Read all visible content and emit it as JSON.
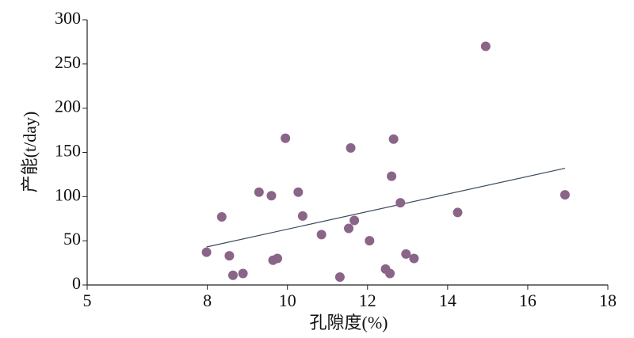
{
  "chart_data": {
    "type": "scatter",
    "xlabel": "孔隙度(%)",
    "ylabel": "产能(t/day)",
    "xlim": [
      5,
      18
    ],
    "xticks": [
      5,
      8,
      10,
      12,
      14,
      16,
      18
    ],
    "ylim": [
      0,
      300
    ],
    "yticks": [
      0,
      50,
      100,
      150,
      200,
      250,
      300
    ],
    "grid": false,
    "color": "#8a6587",
    "line_color": "#3a4a5c",
    "x": [
      7.98,
      8.36,
      8.55,
      8.64,
      8.89,
      9.29,
      9.6,
      9.64,
      9.75,
      9.95,
      10.27,
      10.38,
      10.85,
      11.31,
      11.53,
      11.58,
      11.67,
      12.05,
      12.45,
      12.56,
      12.6,
      12.65,
      12.82,
      12.96,
      13.16,
      14.25,
      14.95,
      16.93
    ],
    "values": [
      37,
      77,
      33,
      11,
      13,
      105,
      101,
      28,
      30,
      166,
      105,
      78,
      57,
      9,
      64,
      155,
      73,
      50,
      18,
      13,
      123,
      165,
      93,
      35,
      30,
      82,
      270,
      102
    ],
    "trendline": {
      "x": [
        7.98,
        16.93
      ],
      "values": [
        43,
        132
      ]
    }
  }
}
